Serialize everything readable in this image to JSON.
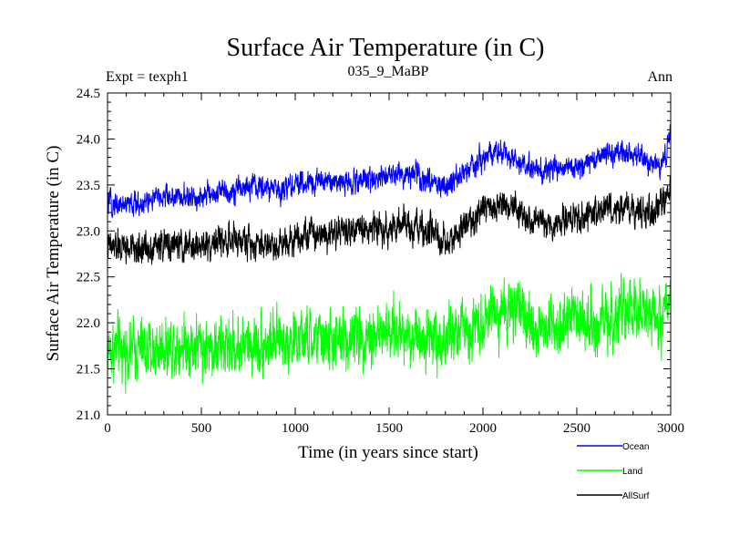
{
  "chart_data": {
    "type": "line",
    "title": "Surface Air Temperature (in C)",
    "subtitle_left": "Expt = texph1",
    "subtitle_center": "035_9_MaBP",
    "subtitle_right": "Ann",
    "xlabel": "Time (in years since start)",
    "ylabel": "Surface Air Temperature (in C)",
    "xlim": [
      0,
      3000
    ],
    "ylim": [
      21.0,
      24.5
    ],
    "xticks": [
      0,
      500,
      1000,
      1500,
      2000,
      2500,
      3000
    ],
    "yticks": [
      21.0,
      21.5,
      22.0,
      22.5,
      23.0,
      23.5,
      24.0,
      24.5
    ],
    "legend_position": "bottom-right, below plot",
    "series": [
      {
        "name": "Ocean",
        "color": "#0000ff",
        "noise": 0.09,
        "anchors": [
          [
            0,
            23.3
          ],
          [
            150,
            23.28
          ],
          [
            300,
            23.38
          ],
          [
            450,
            23.35
          ],
          [
            600,
            23.42
          ],
          [
            750,
            23.48
          ],
          [
            900,
            23.45
          ],
          [
            1000,
            23.5
          ],
          [
            1150,
            23.55
          ],
          [
            1300,
            23.52
          ],
          [
            1450,
            23.6
          ],
          [
            1600,
            23.62
          ],
          [
            1750,
            23.55
          ],
          [
            1800,
            23.45
          ],
          [
            1900,
            23.62
          ],
          [
            2000,
            23.78
          ],
          [
            2100,
            23.85
          ],
          [
            2200,
            23.72
          ],
          [
            2300,
            23.65
          ],
          [
            2400,
            23.7
          ],
          [
            2500,
            23.68
          ],
          [
            2600,
            23.78
          ],
          [
            2700,
            23.85
          ],
          [
            2800,
            23.8
          ],
          [
            2900,
            23.75
          ],
          [
            2950,
            23.7
          ],
          [
            3000,
            24.05
          ]
        ]
      },
      {
        "name": "Land",
        "color": "#00ff00",
        "noise": 0.23,
        "anchors": [
          [
            0,
            21.72
          ],
          [
            200,
            21.7
          ],
          [
            400,
            21.78
          ],
          [
            600,
            21.72
          ],
          [
            800,
            21.78
          ],
          [
            1000,
            21.82
          ],
          [
            1200,
            21.8
          ],
          [
            1400,
            21.88
          ],
          [
            1600,
            21.9
          ],
          [
            1800,
            21.82
          ],
          [
            1950,
            21.98
          ],
          [
            2000,
            22.08
          ],
          [
            2100,
            22.15
          ],
          [
            2200,
            22.05
          ],
          [
            2300,
            21.95
          ],
          [
            2400,
            22.02
          ],
          [
            2500,
            22.05
          ],
          [
            2600,
            22.0
          ],
          [
            2800,
            22.12
          ],
          [
            2900,
            22.05
          ],
          [
            3000,
            22.15
          ]
        ]
      },
      {
        "name": "AllSurf",
        "color": "#000000",
        "noise": 0.12,
        "anchors": [
          [
            0,
            22.82
          ],
          [
            150,
            22.8
          ],
          [
            300,
            22.85
          ],
          [
            450,
            22.82
          ],
          [
            600,
            22.9
          ],
          [
            750,
            22.88
          ],
          [
            900,
            22.85
          ],
          [
            1000,
            22.95
          ],
          [
            1200,
            23.0
          ],
          [
            1400,
            23.02
          ],
          [
            1550,
            23.05
          ],
          [
            1700,
            23.0
          ],
          [
            1800,
            22.85
          ],
          [
            1900,
            23.05
          ],
          [
            2000,
            23.2
          ],
          [
            2100,
            23.3
          ],
          [
            2200,
            23.18
          ],
          [
            2300,
            23.05
          ],
          [
            2400,
            23.1
          ],
          [
            2500,
            23.12
          ],
          [
            2600,
            23.18
          ],
          [
            2700,
            23.25
          ],
          [
            2800,
            23.22
          ],
          [
            2900,
            23.15
          ],
          [
            3000,
            23.45
          ]
        ]
      }
    ]
  }
}
